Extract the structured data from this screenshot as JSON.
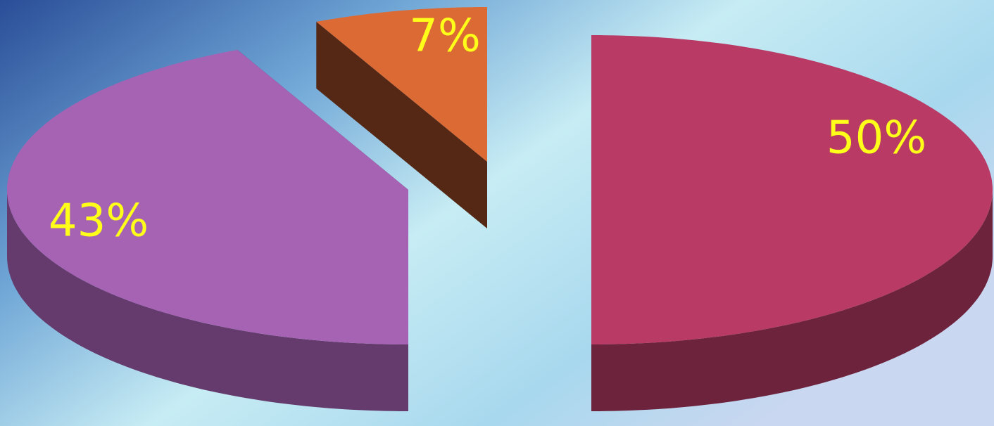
{
  "chart_data": {
    "type": "pie",
    "values": [
      50,
      43,
      7
    ],
    "value_labels": [
      "50%",
      "43%",
      "7%"
    ],
    "colors": [
      "#b83a65",
      "#a663b4",
      "#dc6a35"
    ]
  }
}
